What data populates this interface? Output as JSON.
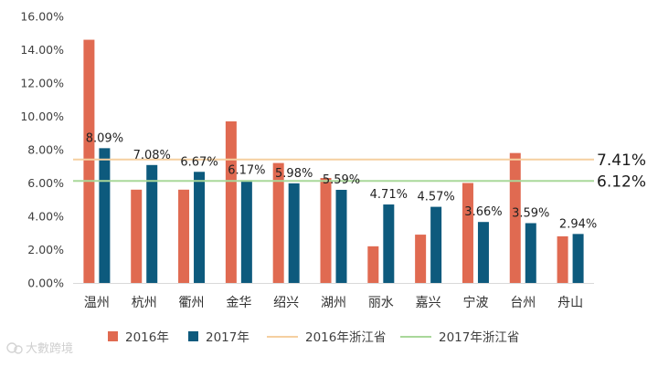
{
  "chart_data": {
    "type": "bar",
    "categories": [
      "温州",
      "杭州",
      "衢州",
      "金华",
      "绍兴",
      "湖州",
      "丽水",
      "嘉兴",
      "宁波",
      "台州",
      "舟山"
    ],
    "series": [
      {
        "name": "2016年",
        "color": "#E06A51",
        "values": [
          14.6,
          5.6,
          5.6,
          9.7,
          7.2,
          6.3,
          2.2,
          2.9,
          6.0,
          7.8,
          2.8
        ],
        "data_labels": [
          "",
          "",
          "",
          "",
          "",
          "",
          "",
          "",
          "",
          "",
          ""
        ]
      },
      {
        "name": "2017年",
        "color": "#0D5A7D",
        "values": [
          8.09,
          7.08,
          6.67,
          6.17,
          5.98,
          5.59,
          4.71,
          4.57,
          3.66,
          3.59,
          2.94
        ],
        "data_labels": [
          "8.09%",
          "7.08%",
          "6.67%",
          "6.17%",
          "5.98%",
          "5.59%",
          "4.71%",
          "4.57%",
          "3.66%",
          "3.59%",
          "2.94%"
        ]
      }
    ],
    "reference_lines": [
      {
        "name": "2016年浙江省",
        "value": 7.41,
        "label": "7.41%",
        "color": "#F5CFA0"
      },
      {
        "name": "2017年浙江省",
        "value": 6.12,
        "label": "6.12%",
        "color": "#A9D89A"
      }
    ],
    "y_ticks": [
      "0.00%",
      "2.00%",
      "4.00%",
      "6.00%",
      "8.00%",
      "10.00%",
      "12.00%",
      "14.00%",
      "16.00%"
    ],
    "ylim": [
      0,
      16
    ],
    "legend_position": "bottom",
    "title": "",
    "xlabel": "",
    "ylabel": ""
  },
  "watermark": {
    "text": "大數跨境",
    "icon": "watermark-logo-icon"
  }
}
